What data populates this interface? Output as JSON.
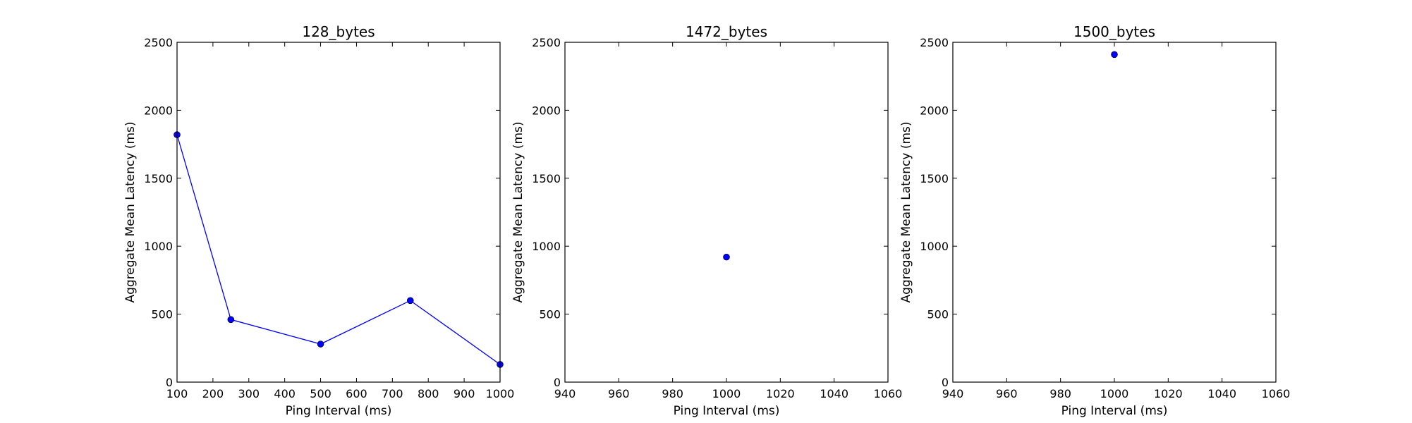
{
  "chart_data": [
    {
      "type": "line",
      "title": "128_bytes",
      "xlabel": "Ping Interval (ms)",
      "ylabel": "Aggregate Mean Latency (ms)",
      "xlim": [
        100,
        1000
      ],
      "ylim": [
        0,
        2500
      ],
      "xticks": [
        100,
        200,
        300,
        400,
        500,
        600,
        700,
        800,
        900,
        1000
      ],
      "yticks": [
        0,
        500,
        1000,
        1500,
        2000,
        2500
      ],
      "grid": false,
      "series": [
        {
          "x": [
            100,
            250,
            500,
            750,
            1000
          ],
          "y": [
            1820,
            460,
            280,
            600,
            130
          ],
          "color": "#0000ff",
          "line": true,
          "marker": "circle"
        }
      ]
    },
    {
      "type": "scatter",
      "title": "1472_bytes",
      "xlabel": "Ping Interval (ms)",
      "ylabel": "Aggregate Mean Latency (ms)",
      "xlim": [
        940,
        1060
      ],
      "ylim": [
        0,
        2500
      ],
      "xticks": [
        940,
        960,
        980,
        1000,
        1020,
        1040,
        1060
      ],
      "yticks": [
        0,
        500,
        1000,
        1500,
        2000,
        2500
      ],
      "grid": false,
      "series": [
        {
          "x": [
            1000
          ],
          "y": [
            920
          ],
          "color": "#0000ff",
          "line": false,
          "marker": "circle"
        }
      ]
    },
    {
      "type": "scatter",
      "title": "1500_bytes",
      "xlabel": "Ping Interval (ms)",
      "ylabel": "Aggregate Mean Latency (ms)",
      "xlim": [
        940,
        1060
      ],
      "ylim": [
        0,
        2500
      ],
      "xticks": [
        940,
        960,
        980,
        1000,
        1020,
        1040,
        1060
      ],
      "yticks": [
        0,
        500,
        1000,
        1500,
        2000,
        2500
      ],
      "grid": false,
      "series": [
        {
          "x": [
            1000
          ],
          "y": [
            2410
          ],
          "color": "#0000ff",
          "line": false,
          "marker": "circle"
        }
      ]
    }
  ]
}
